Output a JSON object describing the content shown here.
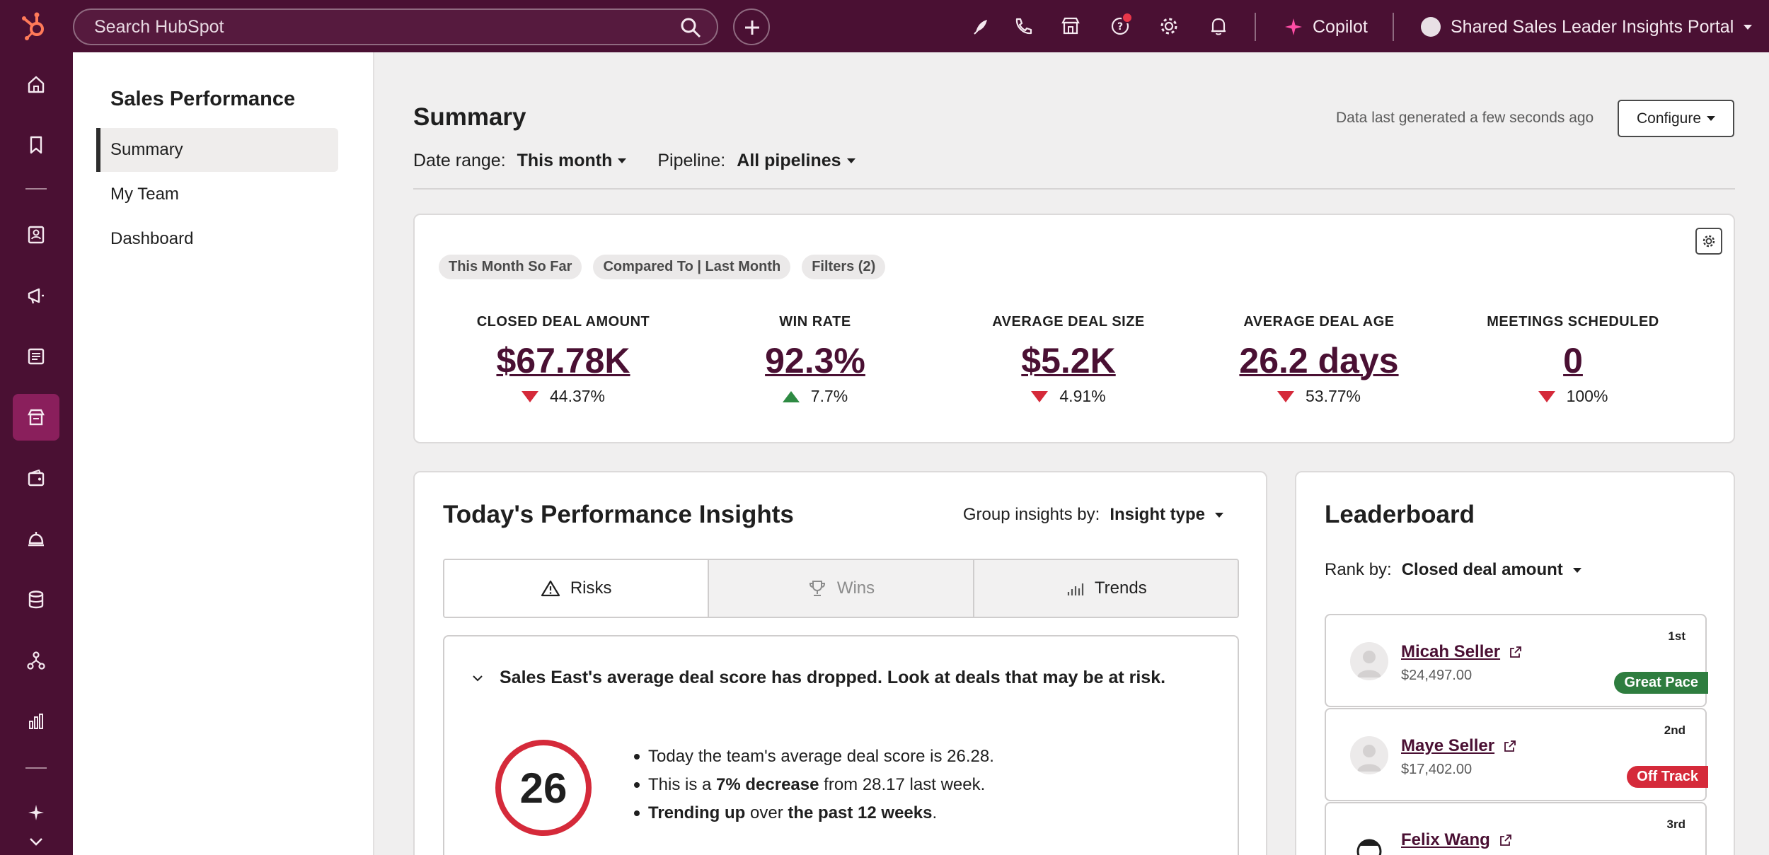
{
  "topbar": {
    "search_placeholder": "Search HubSpot",
    "copilot_label": "Copilot",
    "portal_label": "Shared Sales Leader Insights Portal"
  },
  "subnav": {
    "title": "Sales Performance",
    "items": [
      {
        "label": "Summary",
        "active": true
      },
      {
        "label": "My Team",
        "active": false
      },
      {
        "label": "Dashboard",
        "active": false
      }
    ]
  },
  "page": {
    "title": "Summary",
    "last_generated": "Data last generated a few seconds ago",
    "configure_label": "Configure",
    "date_range_label": "Date range:",
    "date_range_value": "This month",
    "pipeline_label": "Pipeline:",
    "pipeline_value": "All pipelines"
  },
  "kpi_card": {
    "chips": [
      "This Month So Far",
      "Compared To | Last Month",
      "Filters (2)"
    ],
    "kpis": [
      {
        "label": "CLOSED DEAL AMOUNT",
        "value": "$67.78K",
        "change": "44.37%",
        "direction": "down"
      },
      {
        "label": "WIN RATE",
        "value": "92.3%",
        "change": "7.7%",
        "direction": "up"
      },
      {
        "label": "AVERAGE DEAL SIZE",
        "value": "$5.2K",
        "change": "4.91%",
        "direction": "down"
      },
      {
        "label": "AVERAGE DEAL AGE",
        "value": "26.2 days",
        "change": "53.77%",
        "direction": "down"
      },
      {
        "label": "MEETINGS SCHEDULED",
        "value": "0",
        "change": "100%",
        "direction": "down"
      }
    ]
  },
  "insights": {
    "title": "Today's Performance Insights",
    "group_by_label": "Group insights by:",
    "group_by_value": "Insight type",
    "tabs": [
      {
        "label": "Risks",
        "icon": "warning-icon",
        "disabled": false
      },
      {
        "label": "Wins",
        "icon": "trophy-icon",
        "disabled": true
      },
      {
        "label": "Trends",
        "icon": "bar-chart-icon",
        "disabled": false
      }
    ],
    "item": {
      "heading": "Sales East's average deal score has dropped. Look at deals that may be at risk.",
      "score": "26",
      "bullet1": "Today the team's average deal score is 26.28.",
      "bullet2_pre": "This is a ",
      "bullet2_bold": "7% decrease",
      "bullet2_post": " from 28.17 last week.",
      "bullet3_bold1": "Trending up",
      "bullet3_mid": " over ",
      "bullet3_bold2": "the past 12 weeks",
      "bullet3_post": "."
    }
  },
  "leaderboard": {
    "title": "Leaderboard",
    "rank_by_label": "Rank by:",
    "rank_by_value": "Closed deal amount",
    "rows": [
      {
        "name": "Micah Seller",
        "amount": "$24,497.00",
        "position": "1st",
        "tag": "Great Pace",
        "tag_color": "#2e7d3f"
      },
      {
        "name": "Maye Seller",
        "amount": "$17,402.00",
        "position": "2nd",
        "tag": "Off Track",
        "tag_color": "#d52a3a"
      },
      {
        "name": "Felix Wang",
        "amount": "",
        "position": "3rd",
        "tag": "",
        "tag_color": ""
      }
    ]
  },
  "colors": {
    "brand_dark": "#4a1033",
    "rail_active": "#8a1f5c",
    "negative": "#d52a3a",
    "positive": "#2e8a43",
    "notification": "#e8374a"
  }
}
